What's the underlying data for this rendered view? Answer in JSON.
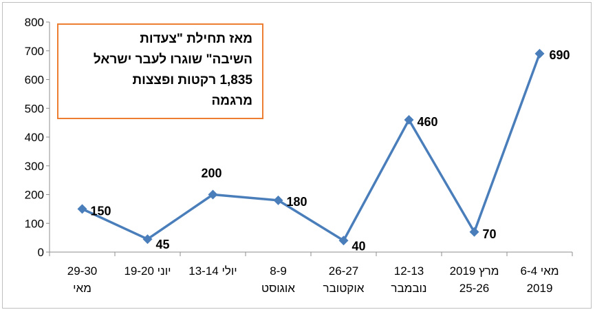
{
  "chart_data": {
    "type": "line",
    "categories": [
      [
        "29-30",
        "מאי"
      ],
      [
        "19-20 יוני",
        ""
      ],
      [
        "13-14 יולי",
        ""
      ],
      [
        "8-9",
        "אוגוסט"
      ],
      [
        "26-27",
        "אוקטובר"
      ],
      [
        "12-13",
        "נובמבר"
      ],
      [
        "2019 מרץ",
        "25-26"
      ],
      [
        "6-4 מאי",
        "2019"
      ]
    ],
    "series": [
      {
        "values": [
          150,
          45,
          200,
          180,
          40,
          460,
          70,
          690
        ]
      }
    ],
    "data_labels": [
      "150",
      "45",
      "200",
      "180",
      "40",
      "460",
      "70",
      "690"
    ],
    "yticks": [
      "0",
      "100",
      "200",
      "300",
      "400",
      "500",
      "600",
      "700",
      "800"
    ],
    "ylim": [
      0,
      800
    ],
    "grid": false,
    "colors": {
      "line": "#4a7ebb",
      "marker": "#4a7ebb",
      "box_border": "#ed7d31"
    },
    "annotation": {
      "lines": [
        "מאז תחילת \"צעדות",
        "השיבה\" שוגרו לעבר ישראל",
        "1,835 רקטות ופצצות",
        "מרגמה"
      ]
    }
  }
}
